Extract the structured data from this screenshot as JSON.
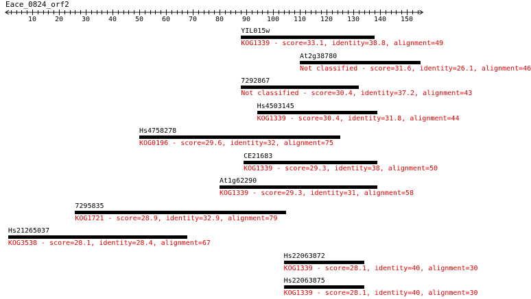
{
  "query": {
    "name": "Eace_0824_orf2"
  },
  "ruler": {
    "min": 0,
    "max": 156,
    "labels": [
      10,
      20,
      30,
      40,
      50,
      60,
      70,
      80,
      90,
      100,
      110,
      120,
      130,
      140,
      150
    ]
  },
  "hits": [
    {
      "id": "YIL015w",
      "start": 88,
      "end": 138,
      "description": "KOG1339 - score=33.1, identity=38.8, alignment=49",
      "name_color": "#000000",
      "desc_color": "#e00000"
    },
    {
      "id": "At2g38780",
      "start": 110,
      "end": 155,
      "description": "Not classified - score=31.6, identity=26.1, alignment=46",
      "name_color": "#000000",
      "desc_color": "#e00000"
    },
    {
      "id": "7292867",
      "start": 88,
      "end": 132,
      "description": "Not classified - score=30.4, identity=37.2, alignment=43",
      "name_color": "#000000",
      "desc_color": "#e00000"
    },
    {
      "id": "Hs4503145",
      "start": 94,
      "end": 139,
      "description": "KOG1339 - score=30.4, identity=31.8, alignment=44",
      "name_color": "#000000",
      "desc_color": "#e00000"
    },
    {
      "id": "Hs4758278",
      "start": 50,
      "end": 125,
      "description": "KOG0196 - score=29.6, identity=32, alignment=75",
      "name_color": "#000000",
      "desc_color": "#e00000"
    },
    {
      "id": "CE21683",
      "start": 89,
      "end": 139,
      "description": "KOG1339 - score=29.3, identity=38, alignment=50",
      "name_color": "#000000",
      "desc_color": "#e00000"
    },
    {
      "id": "At1g62290",
      "start": 80,
      "end": 139,
      "description": "KOG1339 - score=29.3, identity=31, alignment=58",
      "name_color": "#000000",
      "desc_color": "#e00000"
    },
    {
      "id": "7295835",
      "start": 26,
      "end": 105,
      "description": "KOG1721 - score=28.9, identity=32.9, alignment=79",
      "name_color": "#000000",
      "desc_color": "#e00000"
    },
    {
      "id": "Hs21265037",
      "start": 1,
      "end": 68,
      "description": "KOG3538 - score=28.1, identity=28.4, alignment=67",
      "name_color": "#000000",
      "desc_color": "#e00000"
    },
    {
      "id": "Hs22063872",
      "start": 104,
      "end": 134,
      "description": "KOG1339 - score=28.1, identity=40, alignment=30",
      "name_color": "#000000",
      "desc_color": "#e00000"
    },
    {
      "id": "Hs22063875",
      "start": 104,
      "end": 134,
      "description": "KOG1339 - score=28.1, identity=40, alignment=30",
      "name_color": "#000000",
      "desc_color": "#e00000"
    }
  ]
}
